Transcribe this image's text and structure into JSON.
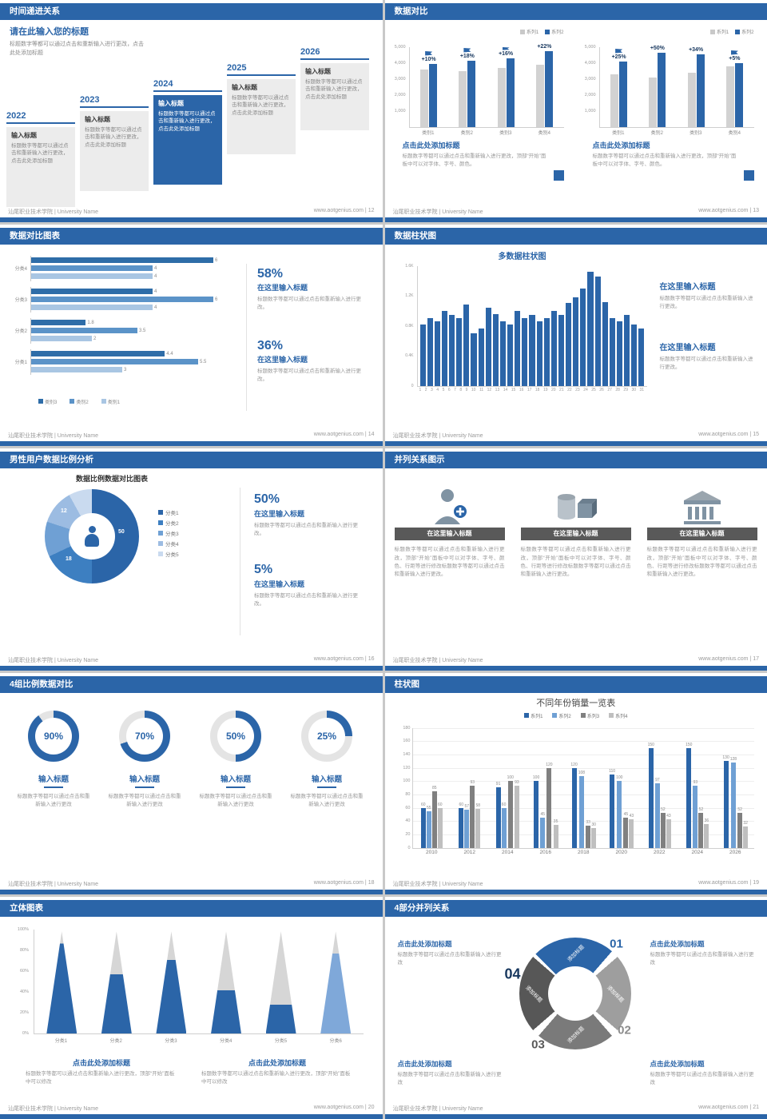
{
  "accent": "#2B65A8",
  "footer": {
    "left": "汕尾职业技术学院 | University Name",
    "site": "www.aotgenius.com",
    "sep": "|"
  },
  "slides": {
    "s12": {
      "page": "12",
      "title": "时间递进关系",
      "intro_title": "请在此输入您的标题",
      "intro_text": "标题数字等都可以通过点击和重新输入进行更改，点击此处添加标题",
      "years": [
        "2022",
        "2023",
        "2024",
        "2025",
        "2026"
      ],
      "highlight_index": 2,
      "item_title": "输入标题",
      "item_text": "标题数字等都可以通过点击和重新输入进行更改，点击此处添加标题"
    },
    "s13": {
      "page": "13",
      "title": "数据对比",
      "legend": [
        "系列1",
        "系列2"
      ],
      "legend_colors": [
        "#C9C9C9",
        "#2B65A8"
      ],
      "categories": [
        "类别1",
        "类别2",
        "类别3",
        "类别4"
      ],
      "y_ticks": [
        "5,000",
        "4,000",
        "3,000",
        "2,000",
        "1,000"
      ],
      "panels": [
        {
          "pcts": [
            "+10%",
            "+18%",
            "+16%",
            "+22%"
          ],
          "grey": [
            3600,
            3500,
            3700,
            3900
          ],
          "blue": [
            3950,
            4150,
            4300,
            4750
          ]
        },
        {
          "pcts": [
            "+25%",
            "+50%",
            "+34%",
            "+5%"
          ],
          "grey": [
            3300,
            3100,
            3400,
            3800
          ],
          "blue": [
            4100,
            4650,
            4550,
            4000
          ]
        }
      ],
      "block_title": "点击此处添加标题",
      "block_text": "标题数字等都可以通过点击和重新输入进行更改，顶部“开始”面板中可以对字体、字号、颜色。"
    },
    "s14": {
      "page": "14",
      "title": "数据对比图表",
      "groups": [
        "分类4",
        "分类3",
        "分类2",
        "分类1"
      ],
      "values": [
        [
          6,
          4,
          4
        ],
        [
          4,
          6,
          4
        ],
        [
          1.8,
          3.5,
          2
        ],
        [
          4.4,
          5.5,
          3
        ]
      ],
      "series_legend": [
        "类别3",
        "类别2",
        "类别1"
      ],
      "colors": [
        "#2E6DA8",
        "#5B93C8",
        "#A9C6E3"
      ],
      "stats": [
        {
          "pct": "58%",
          "title": "在这里输入标题",
          "text": "标题数字等都可以通过点击和重新输入进行更改。"
        },
        {
          "pct": "36%",
          "title": "在这里输入标题",
          "text": "标题数字等都可以通过点击和重新输入进行更改。"
        }
      ]
    },
    "s15": {
      "page": "15",
      "title": "数据柱状图",
      "chart_title": "多数据柱状图",
      "y_ticks": [
        "1.6K",
        "1.2K",
        "0.8K",
        "0.4K",
        "0"
      ],
      "values": [
        820,
        900,
        860,
        1000,
        950,
        900,
        1080,
        700,
        760,
        1040,
        960,
        860,
        820,
        1000,
        900,
        950,
        860,
        900,
        1000,
        950,
        1100,
        1180,
        1300,
        1520,
        1460,
        1120,
        900,
        860,
        950,
        820,
        760
      ],
      "blocks": [
        {
          "title": "在这里输入标题",
          "text": "标题数字等都可以通过点击和重新输入进行更改。"
        },
        {
          "title": "在这里输入标题",
          "text": "标题数字等都可以通过点击和重新输入进行更改。"
        }
      ]
    },
    "s16": {
      "page": "16",
      "title": "男性用户数据比例分析",
      "chart_title": "数据比例数据对比图表",
      "segments": [
        {
          "label": "分类1",
          "value": 50,
          "color": "#2B65A8"
        },
        {
          "label": "分类2",
          "value": 18,
          "color": "#3D7FC1"
        },
        {
          "label": "分类3",
          "value": 12,
          "color": "#6FA0D4"
        },
        {
          "label": "分类4",
          "value": 12,
          "color": "#9CBCE2"
        },
        {
          "label": "分类5",
          "value": 8,
          "color": "#C9DAEF"
        }
      ],
      "slice_labels": [
        "50",
        "18",
        "12"
      ],
      "stats": [
        {
          "pct": "50%",
          "title": "在这里输入标题",
          "text": "标题数字等都可以通过点击和重新输入进行更改。"
        },
        {
          "pct": "5%",
          "title": "在这里输入标题",
          "text": "标题数字等都可以通过点击和重新输入进行更改。"
        }
      ]
    },
    "s17": {
      "page": "17",
      "title": "并列关系图示",
      "columns": [
        {
          "icon": "medical-person-icon",
          "bar": "在这里输入标题",
          "text": "标题数字等都可以通过点击和重新输入进行更改，顶部“开始”面板中可以对字体、字号、颜色、行距等进行修改标题数字等都可以通过点击和重新输入进行更改。"
        },
        {
          "icon": "3d-shapes-icon",
          "bar": "在这里输入标题",
          "text": "标题数字等都可以通过点击和重新输入进行更改，顶部“开始”面板中可以对字体、字号、颜色、行距等进行修改标题数字等都可以通过点击和重新输入进行更改。"
        },
        {
          "icon": "building-icon",
          "bar": "在这里输入标题",
          "text": "标题数字等都可以通过点击和重新输入进行更改，顶部“开始”面板中可以对字体、字号、颜色、行距等进行修改标题数字等都可以通过点击和重新输入进行更改。"
        }
      ]
    },
    "s18": {
      "page": "18",
      "title": "4组比例数据对比",
      "items": [
        {
          "pct": 90,
          "label": "90%",
          "title": "输入标题",
          "text": "标题数字等都可以通过点击和重新输入进行更改"
        },
        {
          "pct": 70,
          "label": "70%",
          "title": "输入标题",
          "text": "标题数字等都可以通过点击和重新输入进行更改"
        },
        {
          "pct": 50,
          "label": "50%",
          "title": "输入标题",
          "text": "标题数字等都可以通过点击和重新输入进行更改"
        },
        {
          "pct": 25,
          "label": "25%",
          "title": "输入标题",
          "text": "标题数字等都可以通过点击和重新输入进行更改"
        }
      ]
    },
    "s19": {
      "page": "19",
      "title": "柱状图",
      "chart_title": "不同年份销量一览表",
      "legend": [
        "系列1",
        "系列2",
        "系列3",
        "系列4"
      ],
      "colors": [
        "#2B65A8",
        "#6FA0D4",
        "#808080",
        "#BFBFBF"
      ],
      "years": [
        "2010",
        "2012",
        "2014",
        "2016",
        "2018",
        "2020",
        "2022",
        "2024",
        "2026"
      ],
      "values": [
        [
          60,
          55,
          85,
          60
        ],
        [
          60,
          57,
          93,
          58
        ],
        [
          91,
          60,
          100,
          93
        ],
        [
          100,
          45,
          120,
          35
        ],
        [
          120,
          108,
          33,
          30
        ],
        [
          110,
          100,
          45,
          43
        ],
        [
          150,
          97,
          52,
          43
        ],
        [
          150,
          93,
          52,
          36
        ],
        [
          130,
          128,
          52,
          32
        ]
      ],
      "y_max": 180,
      "y_step": 20
    },
    "s20": {
      "page": "20",
      "title": "立体图表",
      "categories": [
        "分类1",
        "分类2",
        "分类3",
        "分类4",
        "分类5",
        "分类6"
      ],
      "fills": [
        88,
        58,
        72,
        42,
        28,
        78
      ],
      "cone_colors": [
        "#2B65A8",
        "#2B65A8",
        "#2B65A8",
        "#2B65A8",
        "#2B65A8",
        "#7FA8D9"
      ],
      "y_ticks": [
        "100%",
        "80%",
        "60%",
        "40%",
        "20%",
        "0%"
      ],
      "blocks": [
        {
          "title": "点击此处添加标题",
          "text": "标题数字等都可以通过点击和重新输入进行更改，顶部“开始”面板中可以修改"
        },
        {
          "title": "点击此处添加标题",
          "text": "标题数字等都可以通过点击和重新输入进行更改，顶部“开始”面板中可以修改"
        }
      ]
    },
    "s21": {
      "page": "21",
      "title": "4部分并列关系",
      "numbers": [
        "01",
        "02",
        "03",
        "04"
      ],
      "num_colors": [
        "#2B65A8",
        "#8C8C8C",
        "#595959",
        "#17375E"
      ],
      "seg_colors": [
        "#2B65A8",
        "#9E9E9E",
        "#7A7A7A",
        "#575757"
      ],
      "seg_label": "添加标题",
      "blocks": [
        {
          "title": "点击此处添加标题",
          "text": "标题数字等都可以通过点击和重新输入进行更改"
        },
        {
          "title": "点击此处添加标题",
          "text": "标题数字等都可以通过点击和重新输入进行更改"
        },
        {
          "title": "点击此处添加标题",
          "text": "标题数字等都可以通过点击和重新输入进行更改"
        },
        {
          "title": "点击此处添加标题",
          "text": "标题数字等都可以通过点击和重新输入进行更改"
        }
      ]
    }
  }
}
